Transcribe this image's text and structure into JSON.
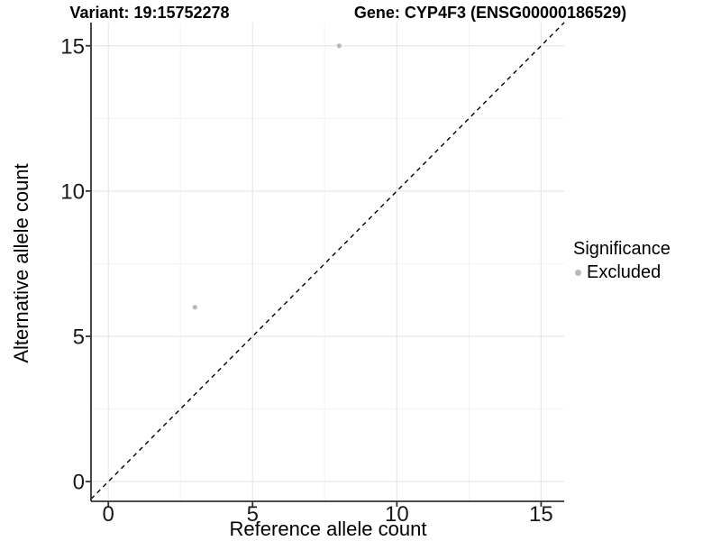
{
  "titles": {
    "variant": "Variant: 19:15752278",
    "gene": "Gene: CYP4F3 (ENSG00000186529)"
  },
  "axes": {
    "x_label": "Reference allele count",
    "y_label": "Alternative allele count",
    "x_ticks": [
      "0",
      "5",
      "10",
      "15"
    ],
    "y_ticks": [
      "0",
      "5",
      "10",
      "15"
    ]
  },
  "legend": {
    "title": "Significance",
    "items": [
      {
        "label": "Excluded",
        "color": "#b8b8b8"
      }
    ]
  },
  "chart_data": {
    "type": "scatter",
    "title": "Variant: 19:15752278 — Gene: CYP4F3 (ENSG00000186529)",
    "xlabel": "Reference allele count",
    "ylabel": "Alternative allele count",
    "xlim": [
      -0.6,
      15.8
    ],
    "ylim": [
      -0.68,
      15.8
    ],
    "x_tick_values": [
      0,
      5,
      10,
      15
    ],
    "y_tick_values": [
      0,
      5,
      10,
      15
    ],
    "minor_tick_values": [
      2.5,
      7.5,
      12.5
    ],
    "grid": true,
    "legend_position": "right",
    "reference_line": {
      "type": "identity",
      "style": "dashed",
      "color": "#000000"
    },
    "series": [
      {
        "name": "Excluded",
        "color": "#b8b8b8",
        "points": [
          {
            "x": 8,
            "y": 15
          },
          {
            "x": 3,
            "y": 6
          }
        ]
      }
    ]
  },
  "colors": {
    "background": "#ffffff",
    "grid_major": "#e7e7e7",
    "grid_minor": "#f3f3f3",
    "axis": "#333333",
    "tick": "#333333",
    "dashed_line": "#000000",
    "point": "#b8b8b8",
    "text": "#000000"
  }
}
